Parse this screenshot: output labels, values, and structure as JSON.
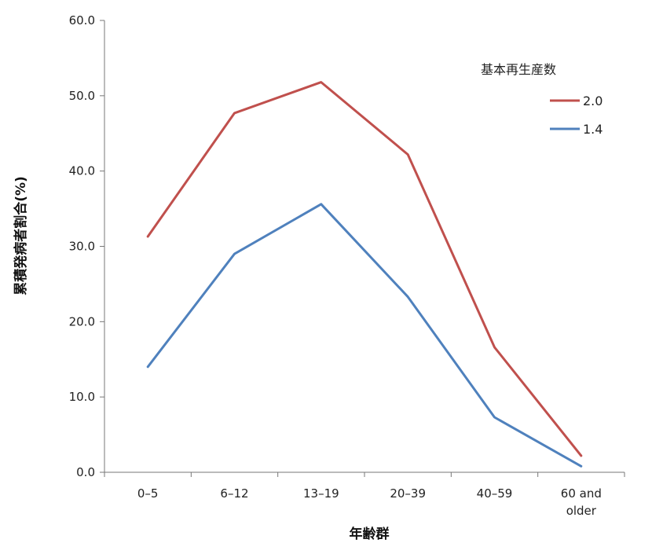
{
  "chart_data": {
    "type": "line",
    "categories": [
      "0–5",
      "6–12",
      "13–19",
      "20–39",
      "40–59",
      "60 and older"
    ],
    "category_lines": [
      [
        "0–5"
      ],
      [
        "6–12"
      ],
      [
        "13–19"
      ],
      [
        "20–39"
      ],
      [
        "40–59"
      ],
      [
        "60 and",
        "older"
      ]
    ],
    "series": [
      {
        "name": "2.0",
        "color": "#C0504D",
        "values": [
          31.3,
          47.7,
          51.8,
          42.2,
          16.6,
          2.2
        ]
      },
      {
        "name": "1.4",
        "color": "#4F81BD",
        "values": [
          14.0,
          29.0,
          35.6,
          23.3,
          7.3,
          0.8
        ]
      }
    ],
    "legend_title": "基本再生産数",
    "legend_position": "top-right",
    "xlabel": "年齢群",
    "ylabel": "累積発病者割合(%)",
    "ylim": [
      0,
      60
    ],
    "yticks": [
      "0.0",
      "10.0",
      "20.0",
      "30.0",
      "40.0",
      "50.0",
      "60.0"
    ],
    "grid": false
  }
}
